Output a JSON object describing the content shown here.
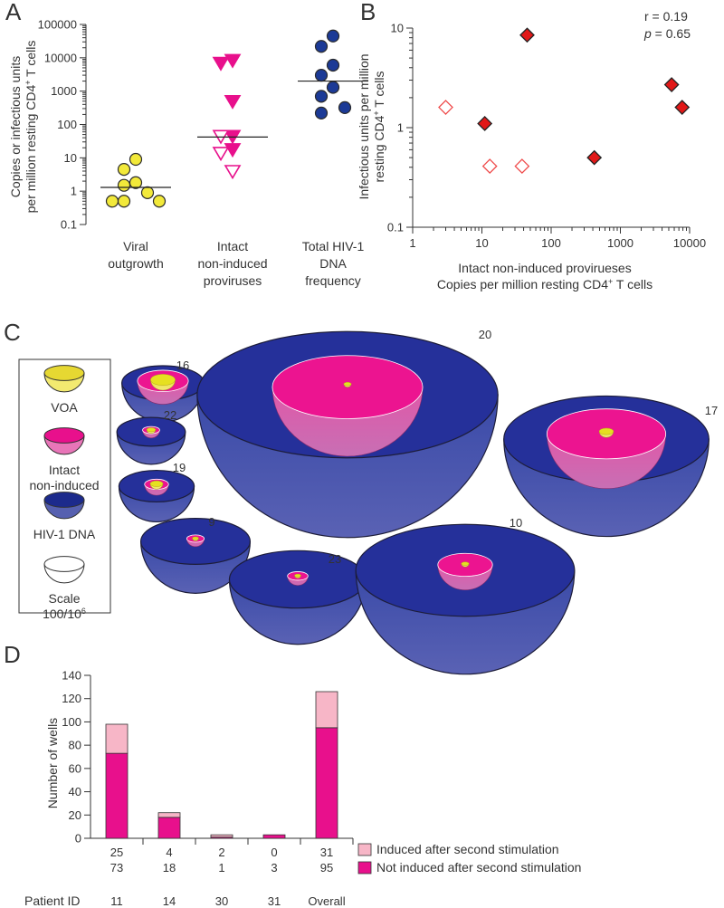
{
  "chart_data": [
    {
      "panel": "A",
      "type": "scatter",
      "yscale": "log",
      "ylim": [
        0.1,
        100000
      ],
      "ytick_labels": [
        "0.1",
        "1",
        "10",
        "100",
        "1000",
        "10000",
        "100000"
      ],
      "ylabel_line1": "Copies or infectious units",
      "ylabel_line2": "per million resting CD4",
      "ylabel_sup": "+",
      "ylabel_tail": " T cells",
      "categories": [
        {
          "lines": [
            "Viral",
            "outgrowth"
          ],
          "marker": "circle",
          "color": "#f2e93a",
          "median": 1.3,
          "points": [
            {
              "v": 9,
              "f": true
            },
            {
              "v": 4.5,
              "f": true
            },
            {
              "v": 1.8,
              "f": true
            },
            {
              "v": 1.5,
              "f": true
            },
            {
              "v": 0.9,
              "f": true
            },
            {
              "v": 0.5,
              "f": true
            },
            {
              "v": 0.5,
              "f": true
            },
            {
              "v": 0.5,
              "f": true
            }
          ]
        },
        {
          "lines": [
            "Intact",
            "non-induced",
            "proviruses"
          ],
          "marker": "triangle-down",
          "color": "#e8108c",
          "median": 42,
          "points": [
            {
              "v": 8500,
              "f": true
            },
            {
              "v": 7000,
              "f": true
            },
            {
              "v": 500,
              "f": true
            },
            {
              "v": 45,
              "f": true
            },
            {
              "v": 45,
              "f": false
            },
            {
              "v": 18,
              "f": true
            },
            {
              "v": 14,
              "f": false
            },
            {
              "v": 4,
              "f": false
            }
          ]
        },
        {
          "lines": [
            "Total HIV-1",
            "DNA",
            "frequency"
          ],
          "marker": "circle",
          "color": "#1c3a96",
          "median": 2000,
          "points": [
            {
              "v": 45000,
              "f": true
            },
            {
              "v": 22000,
              "f": true
            },
            {
              "v": 6000,
              "f": true
            },
            {
              "v": 3000,
              "f": true
            },
            {
              "v": 1300,
              "f": true
            },
            {
              "v": 700,
              "f": true
            },
            {
              "v": 320,
              "f": true
            },
            {
              "v": 220,
              "f": true
            }
          ]
        }
      ]
    },
    {
      "panel": "B",
      "type": "scatter",
      "xscale": "log",
      "yscale": "log",
      "xlim": [
        1,
        10000
      ],
      "ylim": [
        0.1,
        10
      ],
      "xtick_labels": [
        "1",
        "10",
        "100",
        "1000",
        "10000"
      ],
      "ytick_labels": [
        "0.1",
        "1",
        "10"
      ],
      "xlabel_line1": "Intact non-induced provirueses",
      "xlabel_line2": "Copies per million resting CD4",
      "xlabel_sup": "+",
      "xlabel_tail": " T cells",
      "ylabel_line1": "Infectious units per million",
      "ylabel_line2": "resting CD4",
      "ylabel_sup": "+",
      "ylabel_tail": " T cells",
      "stat_r": "r = 0.19",
      "stat_p_sym": "p",
      "stat_p_val": " = 0.65",
      "points": [
        {
          "x": 3,
          "y": 1.6,
          "f": false
        },
        {
          "x": 11,
          "y": 1.1,
          "f": true
        },
        {
          "x": 13,
          "y": 0.41,
          "f": false
        },
        {
          "x": 38,
          "y": 0.41,
          "f": false
        },
        {
          "x": 45,
          "y": 8.5,
          "f": true
        },
        {
          "x": 420,
          "y": 0.5,
          "f": true
        },
        {
          "x": 5500,
          "y": 2.7,
          "f": true
        },
        {
          "x": 7800,
          "y": 1.6,
          "f": true
        }
      ]
    },
    {
      "panel": "C",
      "type": "bubble",
      "legend": [
        {
          "lines": [
            "VOA"
          ],
          "color": "#f2e93a"
        },
        {
          "lines": [
            "Intact",
            "non-induced"
          ],
          "color": "#e8108c"
        },
        {
          "lines": [
            "HIV-1 DNA"
          ],
          "color": "#1c3a96"
        },
        {
          "lines": [
            "Scale",
            "100/10"
          ],
          "sup": "6",
          "color": "#ffffff"
        }
      ],
      "bowls": [
        {
          "id": "16",
          "size": 6,
          "mid": 0.62,
          "small": 0.3
        },
        {
          "id": "22",
          "size": 5,
          "mid": 0.25,
          "small": 0.13
        },
        {
          "id": "19",
          "size": 5.5,
          "mid": 0.32,
          "small": 0.17
        },
        {
          "id": "9",
          "size": 8,
          "mid": 0.16,
          "small": 0.05
        },
        {
          "id": "23",
          "size": 10,
          "mid": 0.15,
          "small": 0.035
        },
        {
          "id": "20",
          "size": 22,
          "mid": 0.5,
          "small": 0.025
        },
        {
          "id": "10",
          "size": 16,
          "mid": 0.25,
          "small": 0.035
        },
        {
          "id": "17",
          "size": 15,
          "mid": 0.58,
          "small": 0.07
        }
      ]
    },
    {
      "panel": "D",
      "type": "bar",
      "stacked": true,
      "ylim": [
        0,
        140
      ],
      "ytick_labels": [
        "0",
        "20",
        "40",
        "60",
        "80",
        "100",
        "120",
        "140"
      ],
      "ylabel": "Number of wells",
      "patient_label": "Patient ID",
      "categories": [
        "11",
        "14",
        "30",
        "31",
        "Overall"
      ],
      "series": [
        {
          "name": "Not induced after second stimulation",
          "color": "#e8108c",
          "values": [
            73,
            18,
            1,
            3,
            95
          ],
          "labels": [
            "73",
            "18",
            "1",
            "3",
            "95"
          ]
        },
        {
          "name": "Induced after second stimulation",
          "color": "#f7b6c7",
          "values": [
            25,
            4,
            2,
            0,
            31
          ],
          "labels": [
            "25",
            "4",
            "2",
            "0",
            "31"
          ]
        }
      ]
    }
  ]
}
